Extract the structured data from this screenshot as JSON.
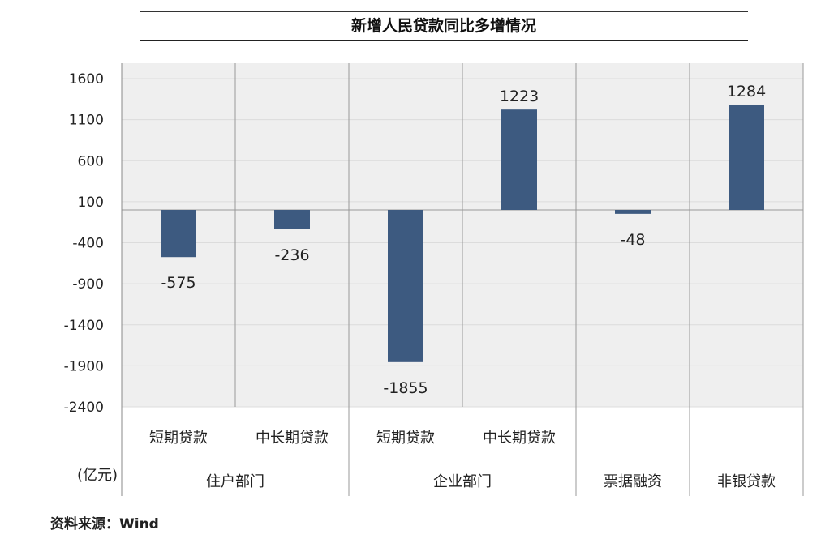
{
  "chart_data": {
    "type": "bar",
    "title": "新增人民贷款同比多增情况",
    "unit_label": "(亿元)",
    "ylim": [
      -2400,
      1600
    ],
    "yticks": [
      1600,
      1100,
      600,
      100,
      -400,
      -900,
      -1400,
      -1900,
      -2400
    ],
    "grid": true,
    "categories": [
      "短期贷款",
      "中长期贷款",
      "短期贷款",
      "中长期贷款",
      "",
      ""
    ],
    "groups": [
      {
        "label": "住户部门",
        "span": 2
      },
      {
        "label": "企业部门",
        "span": 2
      },
      {
        "label": "票据融资",
        "span": 1
      },
      {
        "label": "非银贷款",
        "span": 1
      }
    ],
    "values": [
      -575,
      -236,
      -1855,
      1223,
      -48,
      1284
    ],
    "value_labels": [
      "-575",
      "-236",
      "-1855",
      "1223",
      "-48",
      "1284"
    ],
    "bar_color": "#3d5a80",
    "plot_background": "#efefef"
  },
  "source_note": "资料来源：Wind"
}
